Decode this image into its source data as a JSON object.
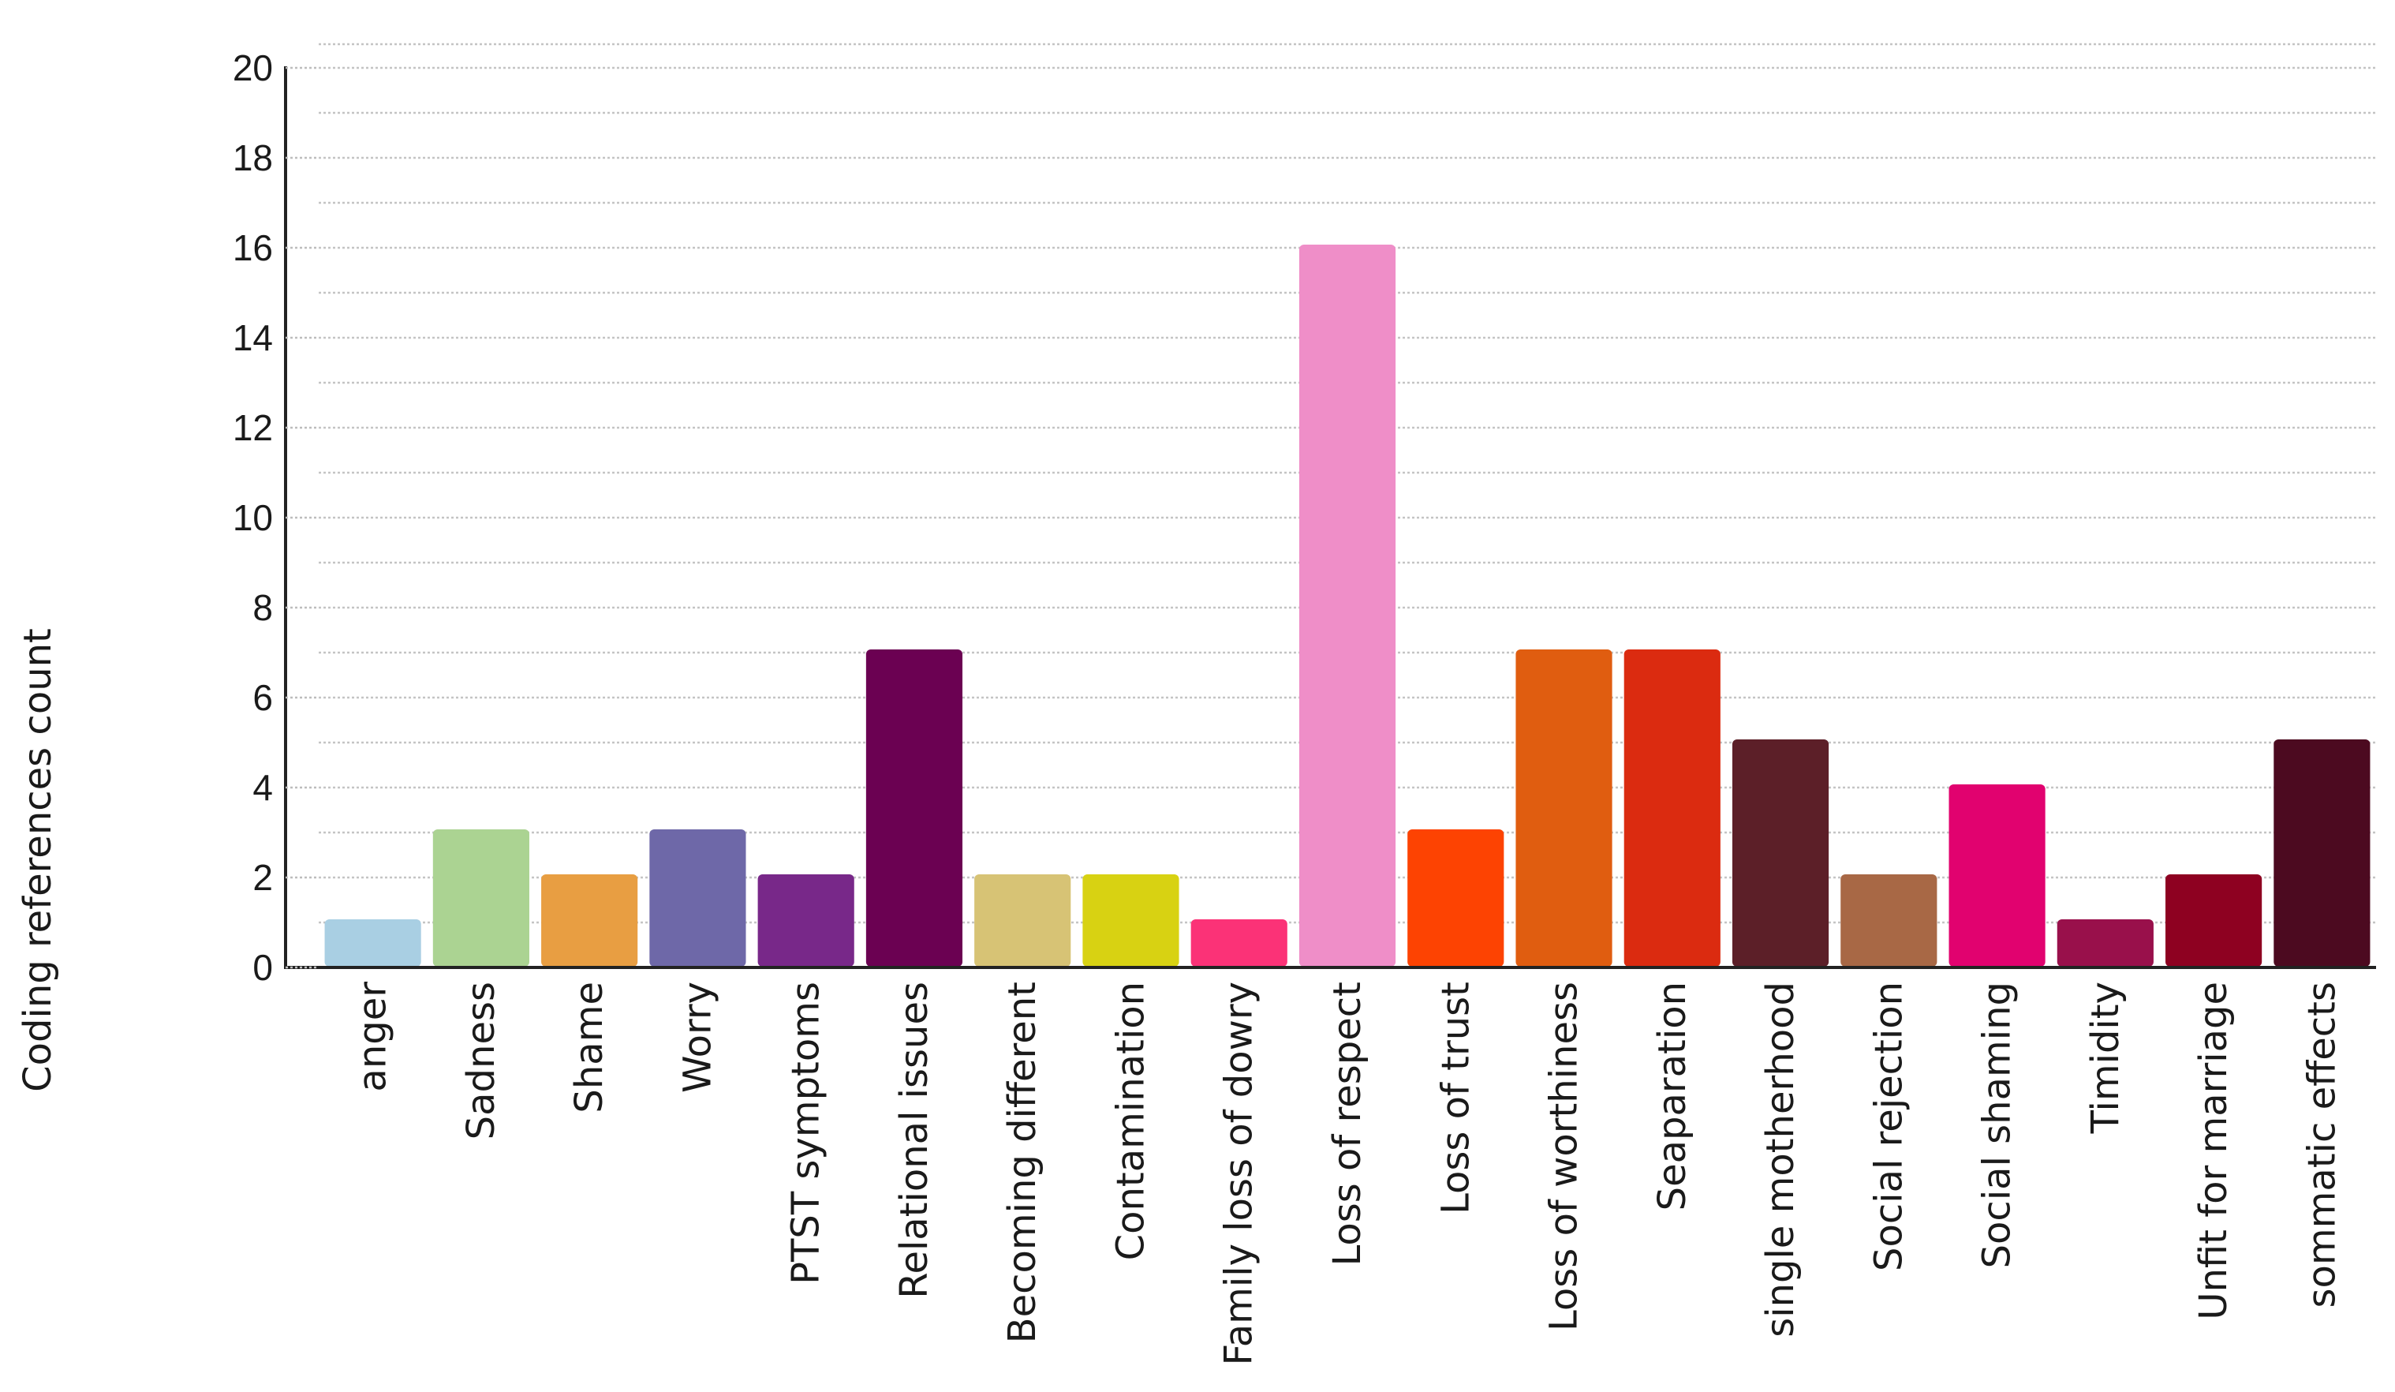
{
  "chart_data": {
    "type": "bar",
    "title": "",
    "xlabel": "",
    "ylabel": "Coding references count",
    "ylim": [
      0,
      20
    ],
    "yticks": [
      0,
      2,
      4,
      6,
      8,
      10,
      12,
      14,
      16,
      18,
      20
    ],
    "grid": true,
    "legend": "none",
    "categories": [
      "anger",
      "Sadness",
      "Shame",
      "Worry",
      "PTST symptoms",
      "Relational issues",
      "Becoming different",
      "Contamination",
      "Family loss of dowry",
      "Loss of respect",
      "Loss of trust",
      "Loss of worthiness",
      "Seaparation",
      "single motherhood",
      "Social rejection",
      "Social shaming",
      "Timidity",
      "Unfit for marriage",
      "sommatic effects"
    ],
    "values": [
      1,
      3,
      2,
      3,
      2,
      7,
      2,
      2,
      1,
      16,
      3,
      7,
      7,
      5,
      2,
      4,
      1,
      2,
      5
    ],
    "colors": [
      "#a9cfe3",
      "#abd392",
      "#e89e42",
      "#6e68a8",
      "#782889",
      "#6b0152",
      "#d7c375",
      "#d8d212",
      "#fb3277",
      "#ef8ec8",
      "#fd4302",
      "#e05d10",
      "#db2b10",
      "#5c1f28",
      "#a86845",
      "#e1026f",
      "#99104b",
      "#8e0121",
      "#4c0a20"
    ]
  }
}
